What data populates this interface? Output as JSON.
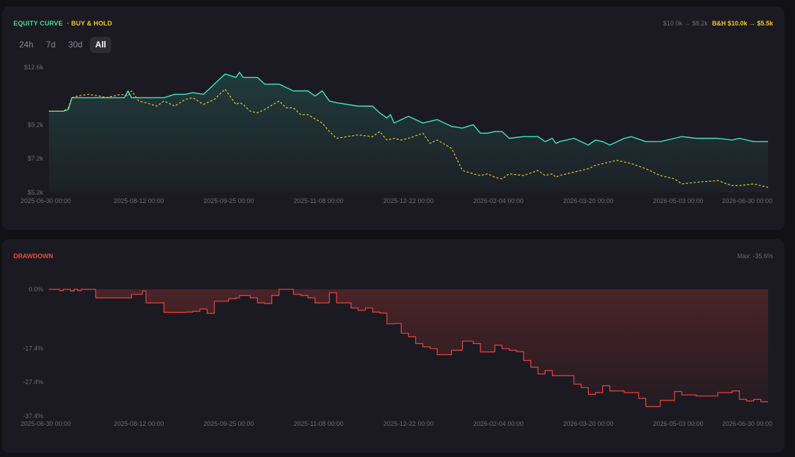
{
  "equity_panel": {
    "legend_equity": "EQUITY CURVE",
    "legend_bh": "· BUY & HOLD",
    "stats_equity": "$10.0k → $8.2k",
    "stats_bh": "B&H $10.0k → $5.5k",
    "tabs": [
      {
        "label": "24h",
        "active": false
      },
      {
        "label": "7d",
        "active": false
      },
      {
        "label": "30d",
        "active": false
      },
      {
        "label": "All",
        "active": true
      }
    ]
  },
  "drawdown_panel": {
    "title": "DRAWDOWN",
    "max_label": "Max: -35.6%"
  },
  "colors": {
    "equity": "#3ee8c8",
    "buy_hold": "#f6c61d",
    "drawdown": "#f0443a",
    "legend_green": "#3ee08a"
  },
  "chart_data": [
    {
      "type": "line",
      "title": "EQUITY CURVE",
      "x_ticks": [
        "2025-06-30 00:00",
        "2025-08-12 00:00",
        "2025-09-25 00:00",
        "2025-11-08 00:00",
        "2025-12-22 00:00",
        "2026-02-04 00:00",
        "2026-03-20 00:00",
        "2026-05-03 00:00",
        "2026-06-30 00:00"
      ],
      "y_ticks": [
        "$12.6k",
        "$9.2k",
        "$7.2k",
        "$5.2k"
      ],
      "y_tick_values": [
        12.6,
        9.2,
        7.2,
        5.2
      ],
      "ylim": [
        5.2,
        12.6
      ],
      "grid": false,
      "series": [
        {
          "name": "EQUITY CURVE",
          "x": [
            0,
            0.02,
            0.027,
            0.032,
            0.04,
            0.055,
            0.07,
            0.09,
            0.105,
            0.11,
            0.115,
            0.125,
            0.135,
            0.15,
            0.16,
            0.175,
            0.19,
            0.2,
            0.215,
            0.23,
            0.245,
            0.26,
            0.265,
            0.27,
            0.28,
            0.29,
            0.3,
            0.32,
            0.34,
            0.35,
            0.36,
            0.37,
            0.38,
            0.39,
            0.4,
            0.43,
            0.45,
            0.46,
            0.47,
            0.475,
            0.48,
            0.49,
            0.5,
            0.52,
            0.54,
            0.56,
            0.575,
            0.59,
            0.6,
            0.61,
            0.62,
            0.63,
            0.64,
            0.66,
            0.68,
            0.69,
            0.7,
            0.705,
            0.71,
            0.73,
            0.75,
            0.76,
            0.77,
            0.78,
            0.79,
            0.8,
            0.81,
            0.83,
            0.85,
            0.87,
            0.88,
            0.9,
            0.93,
            0.95,
            0.96,
            0.98,
            0.99,
            1.0
          ],
          "values": [
            10.0,
            10.0,
            10.1,
            10.8,
            10.8,
            10.8,
            10.8,
            10.8,
            10.8,
            11.2,
            10.8,
            10.8,
            10.8,
            10.8,
            10.8,
            11.0,
            11.0,
            11.1,
            11.0,
            11.6,
            12.2,
            12.0,
            12.3,
            12.0,
            12.0,
            12.0,
            11.6,
            11.6,
            11.2,
            11.2,
            11.2,
            10.9,
            11.2,
            10.6,
            10.5,
            10.3,
            10.3,
            9.9,
            9.6,
            9.8,
            9.3,
            9.5,
            9.7,
            9.3,
            9.5,
            9.1,
            9.0,
            9.2,
            8.7,
            8.7,
            8.8,
            8.8,
            8.4,
            8.5,
            8.5,
            8.2,
            8.4,
            8.1,
            8.2,
            8.4,
            8.0,
            8.3,
            8.2,
            8.0,
            8.2,
            8.4,
            8.5,
            8.2,
            8.2,
            8.4,
            8.5,
            8.4,
            8.4,
            8.3,
            8.4,
            8.2,
            8.2,
            8.2
          ]
        },
        {
          "name": "· BUY & HOLD",
          "x": [
            0,
            0.02,
            0.027,
            0.032,
            0.04,
            0.055,
            0.07,
            0.08,
            0.1,
            0.11,
            0.115,
            0.125,
            0.135,
            0.15,
            0.16,
            0.175,
            0.19,
            0.2,
            0.215,
            0.23,
            0.245,
            0.26,
            0.265,
            0.27,
            0.28,
            0.29,
            0.3,
            0.32,
            0.33,
            0.34,
            0.35,
            0.36,
            0.38,
            0.39,
            0.4,
            0.43,
            0.45,
            0.46,
            0.47,
            0.48,
            0.49,
            0.5,
            0.52,
            0.53,
            0.54,
            0.56,
            0.575,
            0.59,
            0.6,
            0.61,
            0.62,
            0.63,
            0.64,
            0.66,
            0.68,
            0.69,
            0.7,
            0.705,
            0.71,
            0.73,
            0.75,
            0.76,
            0.77,
            0.78,
            0.79,
            0.8,
            0.81,
            0.83,
            0.85,
            0.87,
            0.88,
            0.9,
            0.93,
            0.95,
            0.96,
            0.98,
            0.99,
            1.0
          ],
          "values": [
            10.0,
            10.0,
            10.2,
            10.8,
            10.9,
            11.0,
            10.9,
            10.8,
            11.0,
            10.9,
            11.2,
            10.6,
            10.5,
            10.3,
            10.6,
            10.3,
            10.7,
            10.8,
            10.4,
            10.7,
            11.3,
            10.4,
            10.5,
            10.4,
            10.0,
            9.9,
            10.1,
            10.6,
            10.2,
            10.2,
            9.8,
            9.8,
            9.3,
            8.8,
            8.4,
            8.6,
            8.5,
            8.8,
            8.3,
            8.4,
            8.3,
            8.4,
            8.7,
            8.1,
            8.3,
            7.8,
            6.5,
            6.3,
            6.2,
            6.3,
            6.1,
            6.0,
            6.3,
            6.2,
            6.5,
            6.2,
            6.3,
            6.1,
            6.2,
            6.4,
            6.6,
            6.8,
            6.9,
            7.0,
            7.1,
            7.0,
            6.9,
            6.6,
            6.2,
            6.0,
            5.7,
            5.8,
            5.9,
            5.6,
            5.6,
            5.7,
            5.6,
            5.5
          ]
        }
      ]
    },
    {
      "type": "area",
      "title": "DRAWDOWN",
      "x_ticks": [
        "2025-06-30 00:00",
        "2025-08-12 00:00",
        "2025-09-25 00:00",
        "2025-11-08 00:00",
        "2025-12-22 00:00",
        "2026-02-04 00:00",
        "2026-03-20 00:00",
        "2026-05-03 00:00",
        "2026-06-30 00:00"
      ],
      "y_ticks": [
        "0.0%",
        "-17.4%",
        "-27.4%",
        "-37.4%"
      ],
      "y_tick_values": [
        0.0,
        -17.4,
        -27.4,
        -37.4
      ],
      "ylim": [
        -37.4,
        0
      ],
      "grid": false,
      "series": [
        {
          "name": "DRAWDOWN",
          "x": [
            0,
            0.015,
            0.02,
            0.03,
            0.035,
            0.04,
            0.045,
            0.065,
            0.11,
            0.115,
            0.125,
            0.13,
            0.135,
            0.16,
            0.19,
            0.2,
            0.21,
            0.22,
            0.23,
            0.25,
            0.26,
            0.265,
            0.27,
            0.28,
            0.29,
            0.3,
            0.31,
            0.32,
            0.33,
            0.34,
            0.35,
            0.36,
            0.37,
            0.38,
            0.39,
            0.4,
            0.42,
            0.43,
            0.44,
            0.45,
            0.46,
            0.47,
            0.48,
            0.49,
            0.5,
            0.51,
            0.52,
            0.53,
            0.54,
            0.56,
            0.575,
            0.59,
            0.6,
            0.62,
            0.63,
            0.64,
            0.65,
            0.66,
            0.67,
            0.68,
            0.69,
            0.7,
            0.71,
            0.73,
            0.74,
            0.75,
            0.76,
            0.77,
            0.78,
            0.8,
            0.82,
            0.83,
            0.85,
            0.87,
            0.88,
            0.9,
            0.93,
            0.95,
            0.96,
            0.97,
            0.98,
            0.99,
            1.0
          ],
          "values": [
            0,
            -0.4,
            0,
            -0.5,
            0,
            -0.4,
            0,
            -2.5,
            -2.5,
            -1.5,
            -1.5,
            -0.5,
            -4,
            -6.8,
            -6.7,
            -6.5,
            -5.8,
            -7.1,
            -3.5,
            -2.8,
            -2.5,
            -1.8,
            -1.8,
            -2.5,
            -4,
            -4.2,
            -1.8,
            0,
            0,
            -1.5,
            -1.8,
            -2.5,
            -4,
            -4,
            -1,
            -4,
            -5.5,
            -6.2,
            -5.5,
            -6.7,
            -7.0,
            -10.2,
            -10.1,
            -13.0,
            -14.0,
            -16.0,
            -17.0,
            -17.5,
            -19.3,
            -18.0,
            -15.3,
            -16.0,
            -18.5,
            -16.5,
            -17.5,
            -18.0,
            -18.4,
            -21.0,
            -23.0,
            -25.0,
            -24.0,
            -25.5,
            -25.5,
            -28.0,
            -29.0,
            -31.0,
            -30.5,
            -28.5,
            -30.0,
            -30.5,
            -32.2,
            -34.6,
            -32.8,
            -30.2,
            -31.2,
            -31.5,
            -30.5,
            -30.0,
            -32.5,
            -33.0,
            -32.5,
            -33.2,
            -33.2
          ]
        }
      ]
    }
  ]
}
